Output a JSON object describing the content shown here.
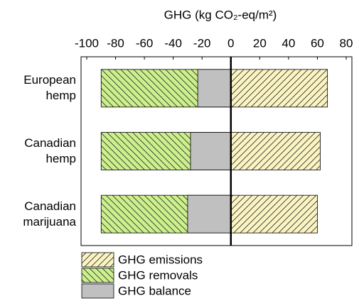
{
  "chart_data": {
    "type": "bar",
    "orientation": "horizontal",
    "title": "GHG (kg CO₂-eq/m²)",
    "categories": [
      "European hemp",
      "Canadian hemp",
      "Canadian marijuana"
    ],
    "series": [
      {
        "name": "GHG emissions",
        "color": "#fbf4c2",
        "hatch": "/",
        "values": [
          67,
          62,
          60
        ]
      },
      {
        "name": "GHG removals",
        "color": "#ccf08c",
        "hatch": "\\",
        "values": [
          -90,
          -90,
          -90
        ]
      },
      {
        "name": "GHG balance",
        "color": "#c0c0c0",
        "values": [
          -23,
          -28,
          -30
        ]
      }
    ],
    "xlim": [
      -100,
      80
    ],
    "xticks": [
      -100,
      -80,
      -60,
      -40,
      -20,
      0,
      20,
      40,
      60,
      80
    ],
    "legend": "bottom"
  }
}
